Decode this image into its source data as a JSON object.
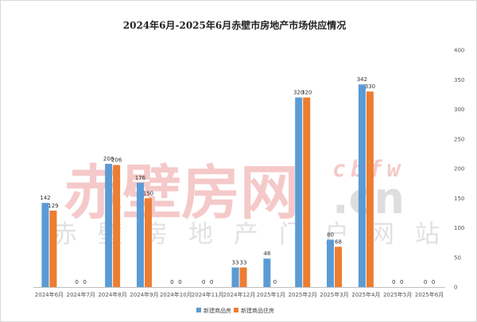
{
  "chart_data": {
    "type": "bar",
    "title": "2024年6月-2025年6月赤壁市房地产市场供应情况",
    "categories": [
      "2024年6月",
      "2024年7月",
      "2024年8月",
      "2024年9月",
      "2024年10月",
      "2024年11月",
      "2024年12月",
      "2025年1月",
      "2025年2月",
      "2025年3月",
      "2025年4月",
      "2025年5月",
      "2025年6月"
    ],
    "series": [
      {
        "name": "新建商品房",
        "color": "#5b9bd5",
        "values": [
          142,
          0,
          208,
          176,
          0,
          0,
          33,
          48,
          320,
          80,
          342,
          0,
          0
        ]
      },
      {
        "name": "新建商品住房",
        "color": "#ed7d31",
        "values": [
          129,
          0,
          206,
          150,
          0,
          0,
          33,
          0,
          320,
          68,
          330,
          0,
          0
        ]
      }
    ],
    "ylim": [
      0,
      400
    ],
    "yticks": [
      0,
      50,
      100,
      150,
      200,
      250,
      300,
      350,
      400
    ],
    "y_axis_side": "right",
    "grid": false,
    "legend_position": "bottom"
  },
  "watermark": {
    "main": "赤壁房网",
    "domain_cn": ".cn",
    "domain_cbfw": "cbfw",
    "subtitle_chars": [
      "赤",
      "壁",
      "房",
      "地",
      "产",
      "门",
      "户",
      "网",
      "站"
    ]
  }
}
